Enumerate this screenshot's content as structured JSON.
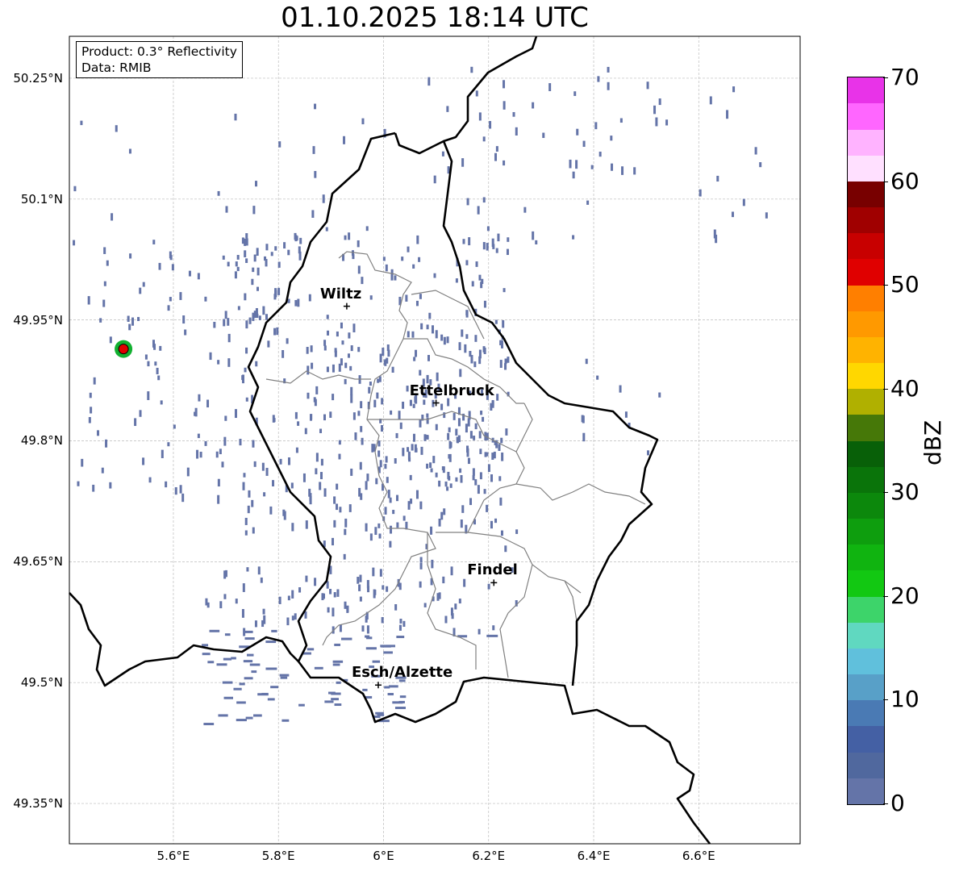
{
  "title": "01.10.2025 18:14 UTC",
  "info": {
    "product": "Product: 0.3° Reflectivity",
    "data": "Data: RMIB"
  },
  "axes": {
    "lat_labels": [
      "50.25°N",
      "50.1°N",
      "49.95°N",
      "49.8°N",
      "49.65°N",
      "49.5°N",
      "49.35°N"
    ],
    "lat_values": [
      50.25,
      50.1,
      49.95,
      49.8,
      49.65,
      49.5,
      49.35
    ],
    "lon_labels": [
      "5.6°E",
      "5.8°E",
      "6°E",
      "6.2°E",
      "6.4°E",
      "6.6°E"
    ],
    "lon_values": [
      5.6,
      5.8,
      6.0,
      6.2,
      6.4,
      6.6
    ],
    "lon_range": [
      5.402,
      6.793
    ],
    "lat_range": [
      49.3,
      50.302
    ]
  },
  "cities": [
    {
      "name": "Wiltz",
      "lon": 5.93,
      "lat": 49.967
    },
    {
      "name": "Ettelbruck",
      "lon": 6.1,
      "lat": 49.847
    },
    {
      "name": "Findel",
      "lon": 6.21,
      "lat": 49.624
    },
    {
      "name": "Esch/Alzette",
      "lon": 5.99,
      "lat": 49.497
    }
  ],
  "radar_site": {
    "lon": 5.505,
    "lat": 49.914
  },
  "colorbar": {
    "label": "dBZ",
    "ticks": [
      "0",
      "10",
      "20",
      "30",
      "40",
      "50",
      "60",
      "70"
    ],
    "min": 0,
    "max": 70,
    "step": 2.5,
    "colors": [
      "#6474a8",
      "#50689e",
      "#4460a4",
      "#4a7ab4",
      "#58a0c8",
      "#60c0dc",
      "#60d8c0",
      "#3dd46a",
      "#12c812",
      "#10b410",
      "#0e9e0e",
      "#0c880c",
      "#0a740a",
      "#086008",
      "#467808",
      "#b0b000",
      "#ffd700",
      "#ffb300",
      "#ff9900",
      "#ff7f00",
      "#e00000",
      "#c80000",
      "#a00000",
      "#780000",
      "#ffe0ff",
      "#ffb3ff",
      "#ff66ff",
      "#e833e8"
    ]
  },
  "echo_color": "#6474a8"
}
